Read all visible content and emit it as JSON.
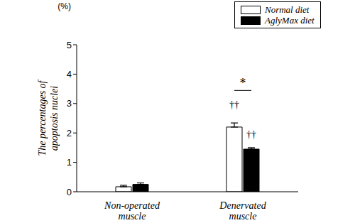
{
  "chart_data": {
    "type": "bar",
    "y_label": "The percentages of apoptosis nuclei",
    "y_unit": "(%)",
    "categories": [
      "Non-operated muscle",
      "Denervated muscle"
    ],
    "series": [
      {
        "name": "Normal diet",
        "color": "#ffffff",
        "values": [
          0.17,
          2.2
        ],
        "errors": [
          0.05,
          0.14
        ]
      },
      {
        "name": "AglyMax diet",
        "color": "#000000",
        "values": [
          0.25,
          1.45
        ],
        "errors": [
          0.05,
          0.05
        ]
      }
    ],
    "ylim": [
      0,
      5
    ],
    "yticks": [
      0,
      1,
      2,
      3,
      4,
      5
    ],
    "grid": false,
    "legend": "upper right",
    "annotations": [
      {
        "text": "*",
        "category": "Denervated muscle",
        "between": [
          "Normal diet",
          "AglyMax diet"
        ]
      },
      {
        "text": "††",
        "category": "Denervated muscle",
        "series": "Normal diet"
      },
      {
        "text": "††",
        "category": "Denervated muscle",
        "series": "AglyMax diet"
      }
    ]
  }
}
